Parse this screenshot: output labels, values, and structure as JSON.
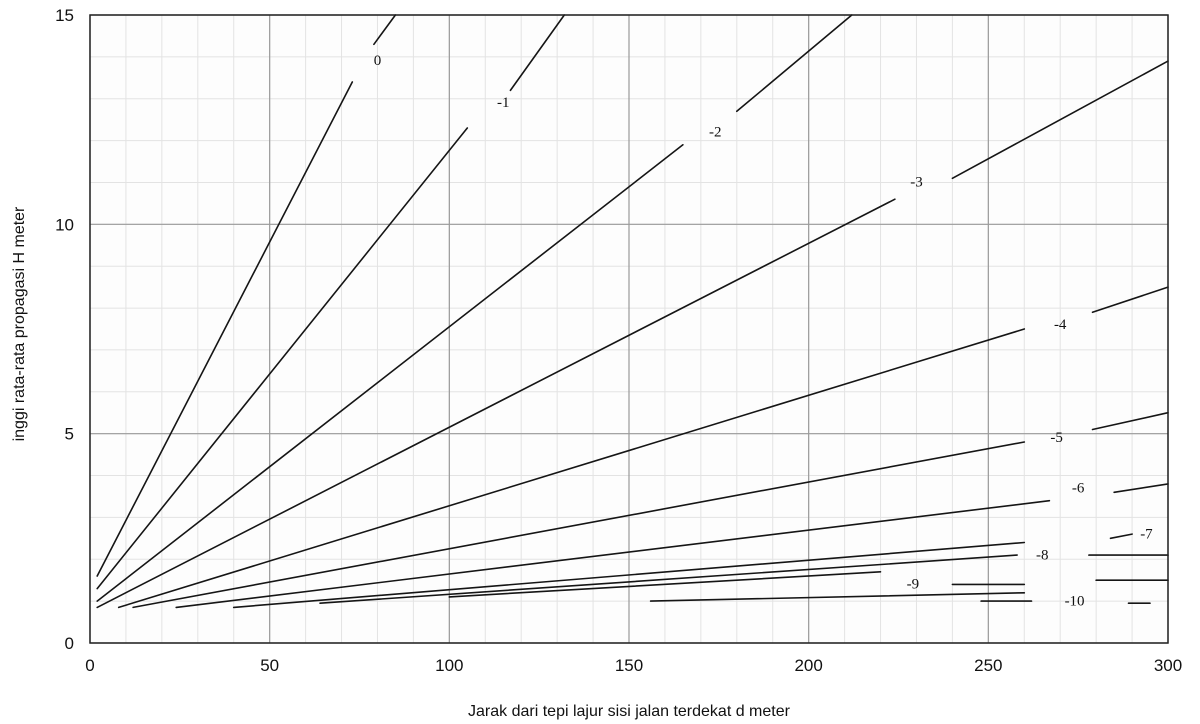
{
  "chart_data": {
    "type": "line",
    "title": "",
    "xlabel": "Jarak dari tepi lajur sisi jalan terdekat d meter",
    "ylabel": "inggi rata-rata propagasi H meter",
    "xlim": [
      0,
      300
    ],
    "ylim": [
      0,
      15
    ],
    "x_ticks": [
      0,
      50,
      100,
      150,
      200,
      250,
      300
    ],
    "x_tick_labels": [
      "0",
      "50",
      "100",
      "150",
      "200",
      "250",
      "300"
    ],
    "y_ticks": [
      0,
      5,
      10,
      15
    ],
    "y_tick_labels": [
      "0",
      "5",
      "10",
      "15"
    ],
    "grid": true,
    "grid_minor_step": 10,
    "series": [
      {
        "name": "0",
        "segments": [
          [
            [
              2,
              1.6
            ],
            [
              73,
              13.4
            ]
          ],
          [
            [
              79,
              14.3
            ],
            [
              85,
              15.0
            ]
          ]
        ],
        "label_at": [
          80,
          13.8
        ]
      },
      {
        "name": "-1",
        "segments": [
          [
            [
              2,
              1.3
            ],
            [
              105,
              12.3
            ]
          ],
          [
            [
              117,
              13.2
            ],
            [
              132,
              15.0
            ]
          ]
        ],
        "label_at": [
          115,
          12.8
        ]
      },
      {
        "name": "-2",
        "segments": [
          [
            [
              2,
              1.0
            ],
            [
              165,
              11.9
            ]
          ],
          [
            [
              180,
              12.7
            ],
            [
              212,
              15.0
            ]
          ]
        ],
        "label_at": [
          174,
          12.1
        ]
      },
      {
        "name": "-3",
        "segments": [
          [
            [
              2,
              0.85
            ],
            [
              224,
              10.6
            ]
          ],
          [
            [
              240,
              11.1
            ],
            [
              300,
              13.9
            ]
          ]
        ],
        "label_at": [
          230,
          10.9
        ]
      },
      {
        "name": "-4",
        "segments": [
          [
            [
              8,
              0.85
            ],
            [
              260,
              7.5
            ]
          ],
          [
            [
              279,
              7.9
            ],
            [
              300,
              8.5
            ]
          ]
        ],
        "label_at": [
          270,
          7.5
        ]
      },
      {
        "name": "-5",
        "segments": [
          [
            [
              12,
              0.85
            ],
            [
              260,
              4.8
            ]
          ],
          [
            [
              279,
              5.1
            ],
            [
              300,
              5.5
            ]
          ]
        ],
        "label_at": [
          269,
          4.8
        ]
      },
      {
        "name": "-6",
        "segments": [
          [
            [
              24,
              0.85
            ],
            [
              267,
              3.4
            ]
          ],
          [
            [
              285,
              3.6
            ],
            [
              300,
              3.8
            ]
          ]
        ],
        "label_at": [
          275,
          3.6
        ]
      },
      {
        "name": "-7",
        "segments": [
          [
            [
              40,
              0.85
            ],
            [
              260,
              2.4
            ]
          ],
          [
            [
              284,
              2.5
            ],
            [
              290,
              2.6
            ]
          ]
        ],
        "label_at": [
          294,
          2.5
        ]
      },
      {
        "name": "-8",
        "segments": [
          [
            [
              64,
              0.95
            ],
            [
              258,
              2.1
            ]
          ],
          [
            [
              278,
              2.1
            ],
            [
              300,
              2.1
            ]
          ]
        ],
        "label_at": [
          265,
          2.0
        ]
      },
      {
        "name": "-9",
        "segments": [
          [
            [
              100,
              1.1
            ],
            [
              220,
              1.7
            ]
          ],
          [
            [
              240,
              1.4
            ],
            [
              260,
              1.4
            ]
          ]
        ],
        "label_at": [
          229,
          1.3
        ]
      },
      {
        "name": "-10",
        "segments": [
          [
            [
              156,
              1.0
            ],
            [
              260,
              1.2
            ]
          ],
          [
            [
              280,
              1.5
            ],
            [
              300,
              1.5
            ]
          ],
          [
            [
              248,
              1.0
            ],
            [
              262,
              1.0
            ]
          ],
          [
            [
              289,
              0.95
            ],
            [
              295,
              0.95
            ]
          ]
        ],
        "label_at": [
          274,
          0.9
        ]
      }
    ]
  }
}
